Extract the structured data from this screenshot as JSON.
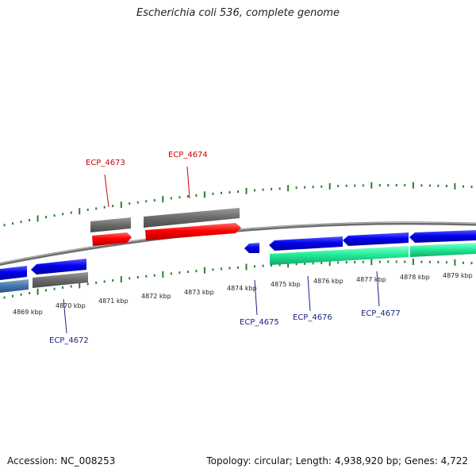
{
  "title": "Escherichia coli 536, complete genome",
  "footer": {
    "accession": "Accession: NC_008253",
    "info": "Topology: circular; Length: 4,938,920 bp; Genes: 4,722"
  },
  "ticks": [
    "4869 kbp",
    "4870 kbp",
    "4871 kbp",
    "4872 kbp",
    "4873 kbp",
    "4874 kbp",
    "4875 kbp",
    "4876 kbp",
    "4877 kbp",
    "4878 kbp",
    "4879 kbp"
  ],
  "genes": [
    {
      "id": "ECP_4672",
      "color": "#1a237e"
    },
    {
      "id": "ECP_4673",
      "color": "#cc0000"
    },
    {
      "id": "ECP_4674",
      "color": "#cc0000"
    },
    {
      "id": "ECP_4675",
      "color": "#1a237e"
    },
    {
      "id": "ECP_4676",
      "color": "#1a237e"
    },
    {
      "id": "ECP_4677",
      "color": "#1a237e"
    }
  ],
  "colors": {
    "tick": "#2e7d32",
    "backbone": "#7a7a7a",
    "forward_cds": "#ee0000",
    "reverse_cds": "#0000ee",
    "gene_bar": "#666666",
    "rna": "#22ee99",
    "other": "#4477aa"
  }
}
